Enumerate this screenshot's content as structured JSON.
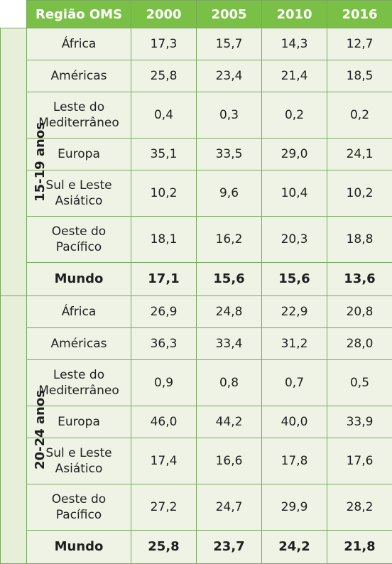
{
  "header": {
    "region": "Região OMS",
    "years": [
      "2000",
      "2005",
      "2010",
      "2016"
    ]
  },
  "groups": [
    {
      "label": "15-19 anos",
      "rows": [
        {
          "region": "África",
          "values": [
            "17,3",
            "15,7",
            "14,3",
            "12,7"
          ]
        },
        {
          "region": "Américas",
          "values": [
            "25,8",
            "23,4",
            "21,4",
            "18,5"
          ]
        },
        {
          "region": "Leste do Mediterrâneo",
          "values": [
            "0,4",
            "0,3",
            "0,2",
            "0,2"
          ]
        },
        {
          "region": "Europa",
          "values": [
            "35,1",
            "33,5",
            "29,0",
            "24,1"
          ]
        },
        {
          "region": "Sul e Leste Asiático",
          "values": [
            "10,2",
            "9,6",
            "10,4",
            "10,2"
          ]
        },
        {
          "region": "Oeste do Pacífico",
          "values": [
            "18,1",
            "16,2",
            "20,3",
            "18,8"
          ]
        },
        {
          "region": "Mundo",
          "values": [
            "17,1",
            "15,6",
            "15,6",
            "13,6"
          ]
        }
      ]
    },
    {
      "label": "20-24 anos",
      "rows": [
        {
          "region": "África",
          "values": [
            "26,9",
            "24,8",
            "22,9",
            "20,8"
          ]
        },
        {
          "region": "Américas",
          "values": [
            "36,3",
            "33,4",
            "31,2",
            "28,0"
          ]
        },
        {
          "region": "Leste do Mediterrâneo",
          "values": [
            "0,9",
            "0,8",
            "0,7",
            "0,5"
          ]
        },
        {
          "region": "Europa",
          "values": [
            "46,0",
            "44,2",
            "40,0",
            "33,9"
          ]
        },
        {
          "region": "Sul e Leste Asiático",
          "values": [
            "17,4",
            "16,6",
            "17,8",
            "17,6"
          ]
        },
        {
          "region": "Oeste do Pacífico",
          "values": [
            "27,2",
            "24,7",
            "29,9",
            "28,2"
          ]
        },
        {
          "region": "Mundo",
          "values": [
            "25,8",
            "23,7",
            "24,2",
            "21,8"
          ]
        }
      ]
    }
  ]
}
